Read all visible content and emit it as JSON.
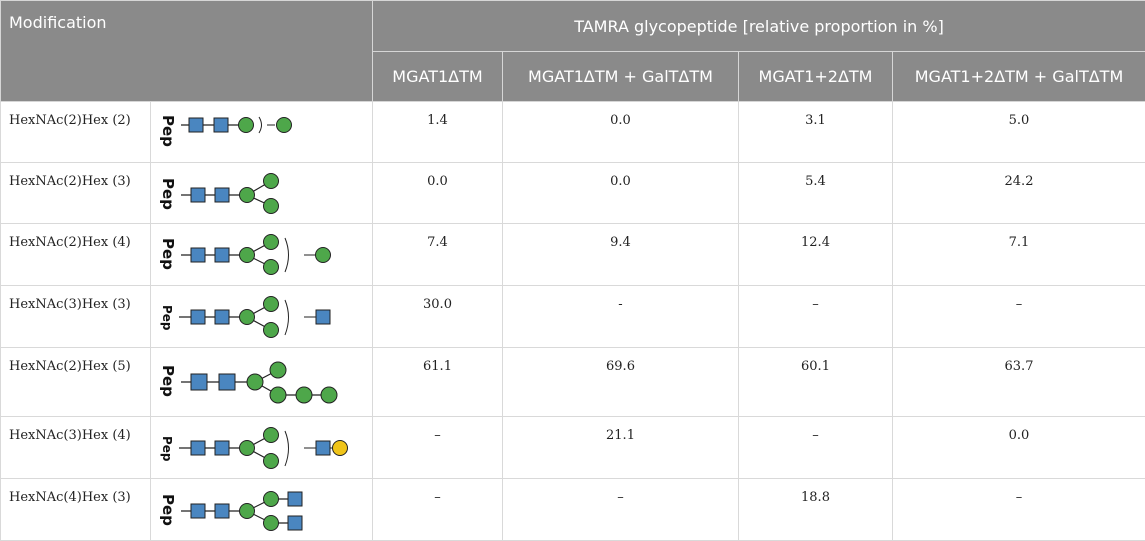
{
  "header": {
    "modification": "Modification",
    "group_title": "TAMRA glycopeptide [relative proportion in %]",
    "columns": [
      "MGAT1ΔTM",
      "MGAT1ΔTM + GalTΔTM",
      "MGAT1+2ΔTM",
      "MGAT1+2ΔTM + GalTΔTM"
    ]
  },
  "glyph_label": "Pep",
  "colors": {
    "header_bg": "#8a8a8a",
    "hexnac_square": "#4a86c0",
    "hex_circle": "#4ea74a",
    "gal_circle": "#f0c419"
  },
  "rows": [
    {
      "name": "HexNAc(2)Hex (2)",
      "glycan": "hexnac2-hex1-plus-hex",
      "values": [
        "1.4",
        "0.0",
        "3.1",
        "5.0"
      ]
    },
    {
      "name": "HexNAc(2)Hex (3)",
      "glycan": "hexnac2-hex-branched2",
      "values": [
        "0.0",
        "0.0",
        "5.4",
        "24.2"
      ]
    },
    {
      "name": "HexNAc(2)Hex (4)",
      "glycan": "hexnac2-hex-branched2-plus-hex",
      "values": [
        "7.4",
        "9.4",
        "12.4",
        "7.1"
      ]
    },
    {
      "name": "HexNAc(3)Hex (3)",
      "glycan": "hexnac2-hex-branched2-plus-hexnac",
      "values": [
        "30.0",
        "-",
        "–",
        "–"
      ]
    },
    {
      "name": "HexNAc(2)Hex (5)",
      "glycan": "hexnac2-hex-branched-chain",
      "values": [
        "61.1",
        "69.6",
        "60.1",
        "63.7"
      ]
    },
    {
      "name": "HexNAc(3)Hex (4)",
      "glycan": "hexnac2-hex-branched2-plus-hexnac-gal",
      "values": [
        "–",
        "21.1",
        "–",
        "0.0"
      ]
    },
    {
      "name": "HexNAc(4)Hex (3)",
      "glycan": "hexnac2-hex-branched2-hexnac-ends",
      "values": [
        "–",
        "–",
        "18.8",
        "–"
      ]
    }
  ]
}
